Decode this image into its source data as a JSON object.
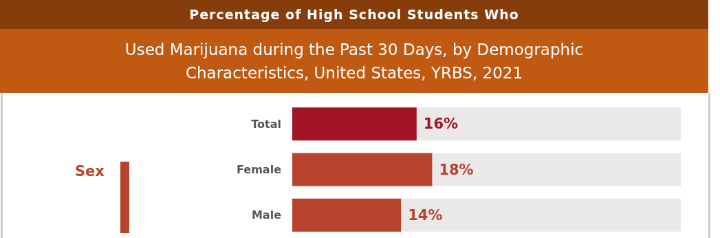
{
  "chart_data": {
    "type": "bar",
    "orientation": "horizontal",
    "title": "Percentage of High School Students Who",
    "subtitle": "Used Marijuana during the Past 30 Days, by Demographic Characteristics, United States, YRBS, 2021",
    "categories": [
      "Total",
      "Female",
      "Male"
    ],
    "values": [
      16,
      18,
      14
    ],
    "colors": [
      "#a31526",
      "#b8432e",
      "#b8432e"
    ],
    "value_labels": [
      "16%",
      "18%",
      "14%"
    ],
    "xlim": [
      0,
      50
    ],
    "annotations": [
      "Sex"
    ]
  }
}
